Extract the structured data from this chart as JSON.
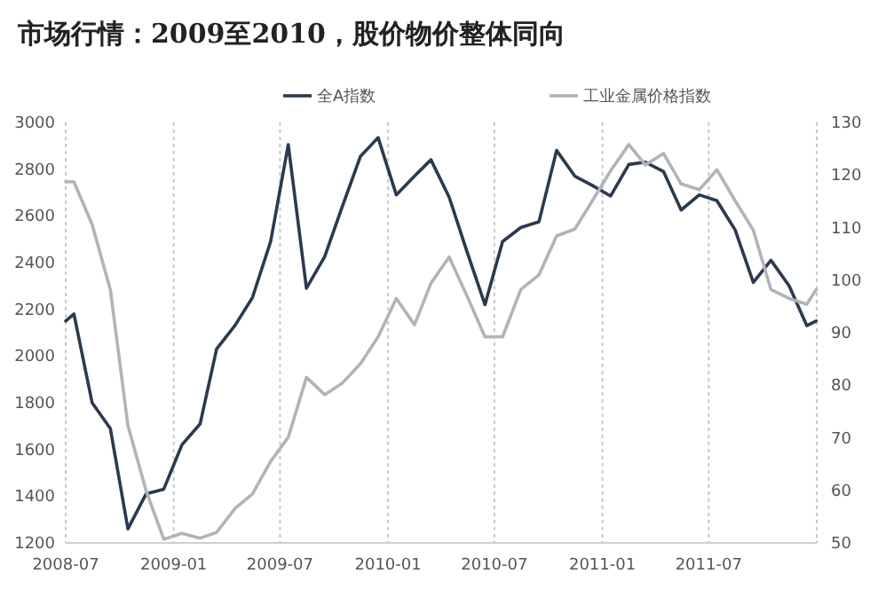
{
  "chart_data": {
    "type": "line",
    "title": "市场行情：2009至2010，股价物价整体同向",
    "xlim": [
      "2008-07-01",
      "2012-01-01"
    ],
    "xticks": [
      "2008-07",
      "2009-01",
      "2009-07",
      "2010-01",
      "2010-07",
      "2011-01",
      "2011-07"
    ],
    "ylim": [
      1200,
      3000
    ],
    "yticks": [
      1200,
      1400,
      1600,
      1800,
      2000,
      2200,
      2400,
      2600,
      2800,
      3000
    ],
    "y2lim": [
      50,
      130
    ],
    "y2ticks": [
      50,
      60,
      70,
      80,
      90,
      100,
      110,
      120,
      130
    ],
    "grid": "x",
    "legend": "top",
    "marker": "none",
    "line_style": "solid",
    "series": [
      {
        "name": "全A指数",
        "color": "#2b3a4e",
        "x": [
          "2008-07-01",
          "2008-07-15",
          "2008-08-15",
          "2008-09-15",
          "2008-10-15",
          "2008-11-15",
          "2008-12-15",
          "2009-01-15",
          "2009-02-15",
          "2009-03-15",
          "2009-04-15",
          "2009-05-15",
          "2009-06-15",
          "2009-07-15",
          "2009-08-15",
          "2009-09-15",
          "2009-10-15",
          "2009-11-15",
          "2009-12-15",
          "2010-01-15",
          "2010-02-15",
          "2010-03-15",
          "2010-04-15",
          "2010-05-15",
          "2010-06-15",
          "2010-07-15",
          "2010-08-15",
          "2010-09-15",
          "2010-10-15",
          "2010-11-15",
          "2010-12-15",
          "2011-01-15",
          "2011-02-15",
          "2011-03-15",
          "2011-04-15",
          "2011-05-15",
          "2011-06-15",
          "2011-07-15",
          "2011-08-15",
          "2011-09-15",
          "2011-10-15",
          "2011-11-15",
          "2011-12-15",
          "2011-12-31"
        ],
        "values": [
          2150,
          2180,
          1800,
          1690,
          1260,
          1410,
          1430,
          1620,
          1710,
          2030,
          2130,
          2250,
          2490,
          2905,
          2290,
          2425,
          2640,
          2855,
          2935,
          2690,
          2770,
          2840,
          2680,
          2450,
          2220,
          2490,
          2550,
          2575,
          2880,
          2770,
          2730,
          2685,
          2820,
          2830,
          2790,
          2625,
          2690,
          2665,
          2540,
          2315,
          2410,
          2300,
          2130,
          2150
        ]
      },
      {
        "name": "工业金属价格指数",
        "color": "#b0b4b8",
        "axis": "y2",
        "x": [
          "2008-07-01",
          "2008-07-15",
          "2008-08-15",
          "2008-09-15",
          "2008-10-15",
          "2008-11-15",
          "2008-12-15",
          "2009-01-15",
          "2009-02-15",
          "2009-03-15",
          "2009-04-15",
          "2009-05-15",
          "2009-06-15",
          "2009-07-15",
          "2009-08-15",
          "2009-09-15",
          "2009-10-15",
          "2009-11-15",
          "2009-12-15",
          "2010-01-15",
          "2010-02-15",
          "2010-03-15",
          "2010-04-15",
          "2010-05-15",
          "2010-06-15",
          "2010-07-15",
          "2010-08-15",
          "2010-09-15",
          "2010-10-15",
          "2010-11-15",
          "2010-12-15",
          "2011-01-15",
          "2011-02-15",
          "2011-03-15",
          "2011-04-15",
          "2011-05-15",
          "2011-06-15",
          "2011-07-15",
          "2011-08-15",
          "2011-09-15",
          "2011-10-15",
          "2011-11-15",
          "2011-12-15",
          "2011-12-31"
        ],
        "values": [
          118.7,
          118.7,
          110.6,
          98.2,
          72.3,
          59.9,
          50.7,
          51.8,
          50.9,
          52.0,
          56.5,
          59.3,
          65.5,
          70.1,
          81.5,
          78.2,
          80.4,
          84.1,
          89.2,
          96.5,
          91.5,
          99.4,
          104.4,
          97.1,
          89.2,
          89.2,
          98.2,
          101,
          108.4,
          109.7,
          115.1,
          120.8,
          125.8,
          121.9,
          124.1,
          118.3,
          117.2,
          121,
          115.1,
          109.5,
          98.2,
          96.5,
          95.4,
          98.2
        ]
      }
    ]
  }
}
